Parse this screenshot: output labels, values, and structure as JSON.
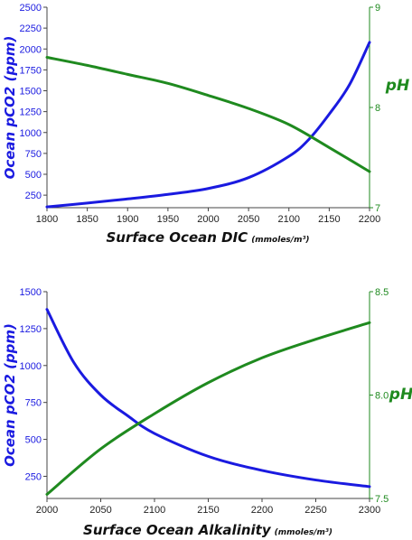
{
  "colors": {
    "pco2": "#1a1ae0",
    "ph": "#1f8a1f",
    "axis": "#444444"
  },
  "chart_data": [
    {
      "type": "line",
      "title": "",
      "xlabel": "Surface Ocean DIC",
      "xunit": "(mmoles/m³)",
      "ylabel": "Ocean pCO2 (ppm)",
      "y2label": "pH",
      "xlim": [
        1800,
        2200
      ],
      "ylim": [
        100,
        2500
      ],
      "y2lim": [
        7,
        9
      ],
      "xticks": [
        1800,
        1850,
        1900,
        1950,
        2000,
        2050,
        2100,
        2150,
        2200
      ],
      "yticks": [
        250,
        500,
        750,
        1000,
        1250,
        1500,
        1750,
        2000,
        2250,
        2500
      ],
      "y2ticks": [
        7,
        8,
        9
      ],
      "grid": false,
      "series": [
        {
          "axis": "left",
          "x": [
            1800,
            1850,
            1900,
            1950,
            2000,
            2050,
            2100,
            2125,
            2150,
            2175,
            2200
          ],
          "values": [
            110,
            155,
            205,
            260,
            330,
            460,
            715,
            920,
            1220,
            1570,
            2080
          ]
        },
        {
          "axis": "right",
          "x": [
            1800,
            1850,
            1900,
            1950,
            2000,
            2050,
            2100,
            2150,
            2200
          ],
          "values": [
            8.5,
            8.42,
            8.33,
            8.24,
            8.12,
            7.99,
            7.83,
            7.6,
            7.36
          ]
        }
      ]
    },
    {
      "type": "line",
      "title": "",
      "xlabel": "Surface Ocean Alkalinity",
      "xunit": "(mmoles/m³)",
      "ylabel": "Ocean pCO2 (ppm)",
      "y2label": "pH",
      "xlim": [
        2000,
        2300
      ],
      "ylim": [
        100,
        1500
      ],
      "y2lim": [
        7.5,
        8.5
      ],
      "xticks": [
        2000,
        2050,
        2100,
        2150,
        2200,
        2250,
        2300
      ],
      "yticks": [
        250,
        500,
        750,
        1000,
        1250,
        1500
      ],
      "y2ticks": [
        "7.5",
        "8.0",
        "8.5"
      ],
      "grid": false,
      "series": [
        {
          "axis": "left",
          "x": [
            2000,
            2025,
            2050,
            2075,
            2100,
            2150,
            2200,
            2250,
            2300
          ],
          "values": [
            1380,
            1020,
            800,
            660,
            540,
            385,
            290,
            225,
            180
          ]
        },
        {
          "axis": "right",
          "x": [
            2000,
            2050,
            2100,
            2150,
            2200,
            2250,
            2300
          ],
          "values": [
            7.52,
            7.74,
            7.91,
            8.06,
            8.18,
            8.27,
            8.35
          ]
        }
      ]
    }
  ]
}
